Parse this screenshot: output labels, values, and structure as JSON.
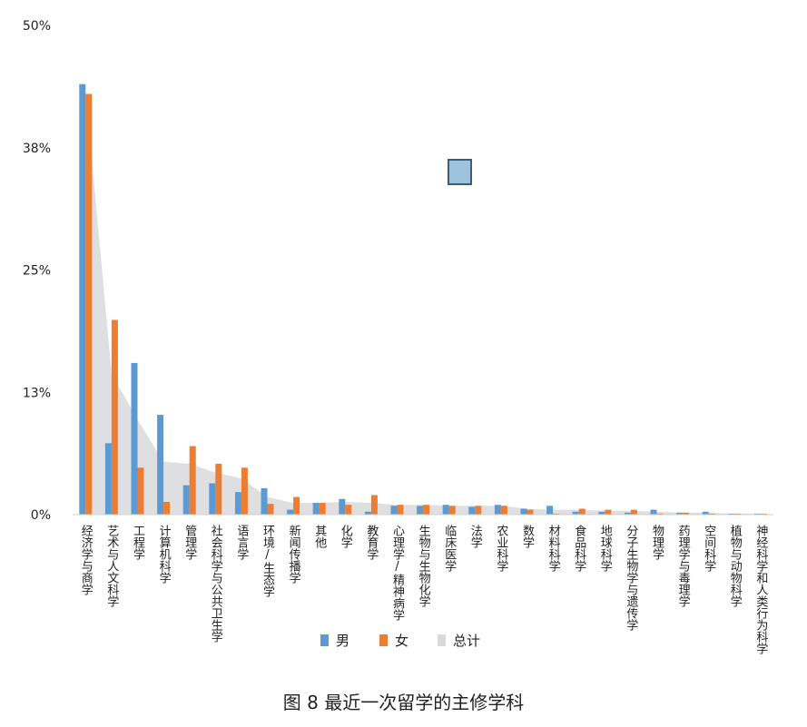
{
  "chart_data": {
    "type": "bar",
    "title": "图 8 最近一次留学的主修学科",
    "ylim": [
      0,
      50
    ],
    "yticks": [
      "0%",
      "13%",
      "25%",
      "38%",
      "50%"
    ],
    "categories": [
      "经济学与商学",
      "艺术与人文科学",
      "工程学",
      "计算机科学",
      "管理学",
      "社会科学与公共卫生学",
      "语言学",
      "环境/生态学",
      "新闻传播学",
      "其他",
      "化学",
      "教育学",
      "心理学/精神病学",
      "生物与生物化学",
      "临床医学",
      "法学",
      "农业科学",
      "数学",
      "材料科学",
      "食品科学",
      "地球科学",
      "分子生物学与遗传学",
      "物理学",
      "药理学与毒理学",
      "空间科学",
      "植物与动物科学",
      "神经科学和人类行为科学"
    ],
    "series": [
      {
        "name": "男",
        "color": "#5b9bd5",
        "values": [
          44.0,
          7.3,
          15.5,
          10.2,
          3.0,
          3.2,
          2.3,
          2.7,
          0.5,
          1.2,
          1.6,
          0.3,
          0.9,
          0.9,
          1.0,
          0.8,
          1.0,
          0.6,
          0.9,
          0.3,
          0.3,
          0.2,
          0.5,
          0.2,
          0.3,
          0.1,
          0.1
        ]
      },
      {
        "name": "女",
        "color": "#ed7d31",
        "values": [
          43.0,
          19.9,
          4.8,
          1.3,
          7.0,
          5.2,
          4.8,
          1.1,
          1.8,
          1.2,
          1.0,
          2.0,
          1.0,
          1.0,
          0.9,
          0.9,
          0.9,
          0.5,
          0.1,
          0.6,
          0.5,
          0.5,
          0.1,
          0.2,
          0.1,
          0.1,
          0.1
        ]
      },
      {
        "name": "总计",
        "color": "#d9d9dc",
        "values": [
          43.4,
          14.4,
          9.7,
          5.4,
          5.2,
          4.3,
          3.7,
          1.8,
          1.2,
          1.2,
          1.3,
          1.2,
          1.0,
          1.0,
          0.9,
          0.9,
          0.9,
          0.6,
          0.5,
          0.5,
          0.4,
          0.4,
          0.3,
          0.2,
          0.2,
          0.1,
          0.1
        ]
      }
    ],
    "legend_position": "bottom",
    "grid": false
  },
  "caption": "图 8 最近一次留学的主修学科",
  "legend": {
    "male": "男",
    "female": "女",
    "total": "总计"
  },
  "colors": {
    "male": "#5b9bd5",
    "female": "#ed7d31",
    "total": "#d9d9dc",
    "marker": "#9ec3df"
  }
}
